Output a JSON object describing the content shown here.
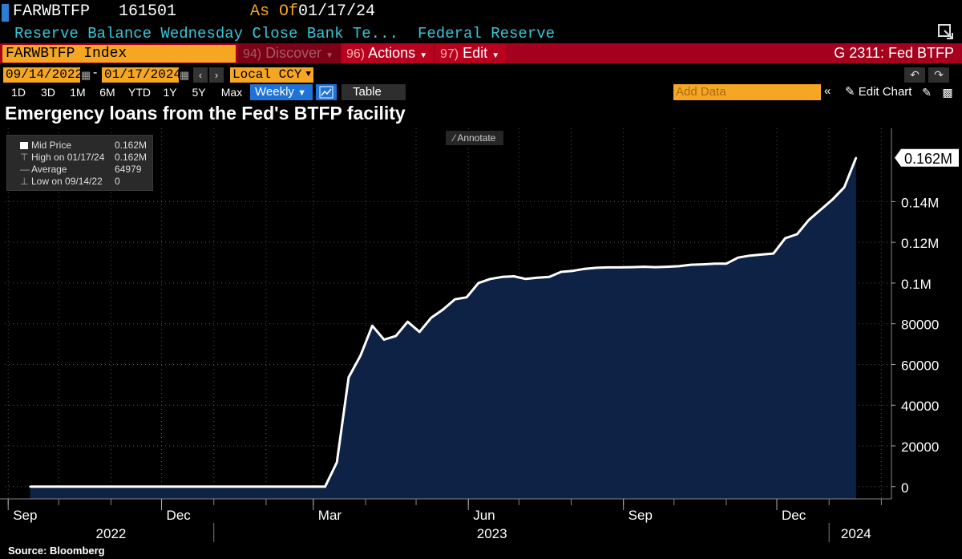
{
  "header": {
    "ticker": "FARWBTFP",
    "last_value": "161501",
    "asof_label": "As Of",
    "asof_date": "01/17/24",
    "description": "Reserve Balance Wednesday Close Bank Te...",
    "source_name": "Federal Reserve"
  },
  "toolbar": {
    "ticker_field": "FARWBTFP Index",
    "discover": {
      "num": "94)",
      "label": "Discover"
    },
    "actions": {
      "num": "96)",
      "label": "Actions"
    },
    "edit": {
      "num": "97)",
      "label": "Edit"
    },
    "function_title": "G 2311: Fed BTFP"
  },
  "date_controls": {
    "start": "09/14/2022",
    "end": "01/17/2024",
    "dash": "-",
    "currency": "Local CCY"
  },
  "periods": [
    "1D",
    "3D",
    "1M",
    "6M",
    "YTD",
    "1Y",
    "5Y",
    "Max"
  ],
  "frequency": "Weekly",
  "table_label": "Table",
  "add_data_placeholder": "Add Data",
  "edit_chart_label": "Edit Chart",
  "annotate_label": "Annotate",
  "legend": {
    "rows": [
      {
        "name": "Mid Price",
        "value": "0.162M"
      },
      {
        "name": "High on 01/17/24",
        "value": "0.162M"
      },
      {
        "name": "Average",
        "value": "64979"
      },
      {
        "name": "Low on 09/14/22",
        "value": "0"
      }
    ]
  },
  "source_text": "Source: Bloomberg",
  "colors": {
    "accent_orange": "#f5a623",
    "toolbar_red": "#a5001e",
    "cyan_text": "#36c6d8",
    "area_fill": "#0d2244",
    "line": "#ffffff"
  },
  "chart_data": {
    "type": "area",
    "title": "Emergency loans from the Fed's BTFP facility",
    "series": [
      {
        "name": "FARWBTFP Index (Mid Price)",
        "x": [
          "2022-09-14",
          "2023-03-08",
          "2023-03-15",
          "2023-03-22",
          "2023-03-29",
          "2023-04-05",
          "2023-04-12",
          "2023-04-19",
          "2023-04-26",
          "2023-05-03",
          "2023-05-10",
          "2023-05-17",
          "2023-05-24",
          "2023-05-31",
          "2023-06-07",
          "2023-06-14",
          "2023-06-21",
          "2023-06-28",
          "2023-07-05",
          "2023-07-12",
          "2023-07-19",
          "2023-07-26",
          "2023-08-02",
          "2023-08-09",
          "2023-08-16",
          "2023-08-23",
          "2023-08-30",
          "2023-09-06",
          "2023-09-13",
          "2023-09-20",
          "2023-09-27",
          "2023-10-04",
          "2023-10-11",
          "2023-10-18",
          "2023-10-25",
          "2023-11-01",
          "2023-11-08",
          "2023-11-15",
          "2023-11-22",
          "2023-11-29",
          "2023-12-06",
          "2023-12-13",
          "2023-12-20",
          "2023-12-27",
          "2024-01-03",
          "2024-01-10",
          "2024-01-17"
        ],
        "values": [
          0,
          0,
          11943,
          53669,
          64403,
          79020,
          72200,
          74000,
          81000,
          76000,
          83000,
          87000,
          92000,
          93000,
          100000,
          102000,
          103000,
          103300,
          102000,
          102600,
          103000,
          105500,
          106000,
          107000,
          107500,
          107700,
          107700,
          107800,
          108000,
          107800,
          108000,
          108300,
          109000,
          109200,
          109500,
          109500,
          112500,
          113500,
          114000,
          114500,
          122000,
          124000,
          131000,
          136000,
          141000,
          147000,
          161501
        ]
      }
    ],
    "x_tick_labels": [
      "Sep",
      "Dec",
      "Mar",
      "Jun",
      "Sep",
      "Dec"
    ],
    "x_tick_dates": [
      "2022-09-01",
      "2022-12-01",
      "2023-03-01",
      "2023-06-01",
      "2023-09-01",
      "2023-12-01"
    ],
    "year_labels": [
      "2022",
      "2023",
      "2024"
    ],
    "y_tick_values": [
      0,
      20000,
      40000,
      60000,
      80000,
      100000,
      120000,
      140000
    ],
    "y_tick_labels": [
      "0",
      "20000",
      "40000",
      "60000",
      "80000",
      "0.1M",
      "0.12M",
      "0.14M"
    ],
    "last_value_label": "0.162M",
    "ylim": [
      -6000,
      176000
    ],
    "xlim": [
      "2022-08-30",
      "2024-02-07"
    ],
    "grid": true,
    "legend_position": "top-left"
  }
}
